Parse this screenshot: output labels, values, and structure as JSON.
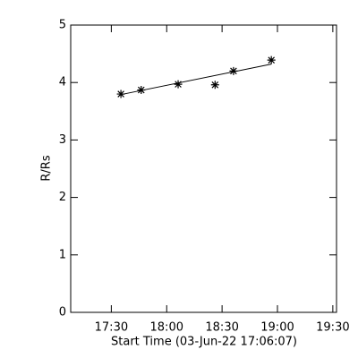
{
  "chart_data": {
    "type": "scatter",
    "x_label": "Start Time (03-Jun-22 17:06:07)",
    "y_label": "R/Rs",
    "x": [
      1055.2,
      1066.2,
      1086.2,
      1106.2,
      1116.2,
      1136.7
    ],
    "values": [
      3.8,
      3.87,
      3.97,
      3.96,
      4.2,
      4.39
    ],
    "fit_line": {
      "x": [
        1055.2,
        1136.7
      ],
      "values": [
        3.79,
        4.32
      ]
    },
    "color": "#000000",
    "xlim": [
      1028,
      1172
    ],
    "ylim": [
      0,
      5
    ],
    "xticks": [
      {
        "value": 1050,
        "label": "17:30"
      },
      {
        "value": 1080,
        "label": "18:00"
      },
      {
        "value": 1110,
        "label": "18:30"
      },
      {
        "value": 1140,
        "label": "19:00"
      },
      {
        "value": 1170,
        "label": "19:30"
      }
    ],
    "yticks": [
      0,
      1,
      2,
      3,
      4,
      5
    ]
  }
}
